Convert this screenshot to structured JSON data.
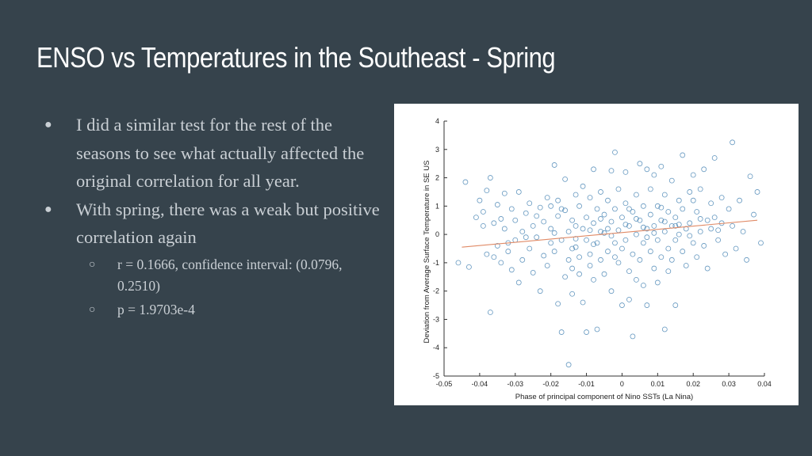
{
  "slide": {
    "title": "ENSO vs Temperatures in the Southeast - Spring",
    "bullets": [
      {
        "text": "I did a similar test for the rest of the seasons to see what actually affected the original correlation for all year.",
        "level": 1
      },
      {
        "text": "With spring, there was a weak but positive correlation again",
        "level": 1
      },
      {
        "text": "r = 0.1666, confidence interval: (0.0796, 0.2510)",
        "level": 2
      },
      {
        "text": "p = 1.9703e-4",
        "level": 2
      }
    ],
    "bullet_glyphs": {
      "level1": "●",
      "level2": "○"
    }
  },
  "colors": {
    "background": "#36434c",
    "title": "#ffffff",
    "body_text": "#c9cfd4",
    "points": "#4a86b5",
    "fit_line": "#e08a66"
  },
  "chart_data": {
    "type": "scatter",
    "xlabel": "Phase of principal component of Nino SSTs (La Nina)",
    "ylabel": "Deviation from Average Surface Temperature in SE US",
    "xlim": [
      -0.05,
      0.04
    ],
    "ylim": [
      -5,
      4
    ],
    "xticks": [
      -0.05,
      -0.04,
      -0.03,
      -0.02,
      -0.01,
      0,
      0.01,
      0.02,
      0.03,
      0.04
    ],
    "xtick_labels": [
      "-0.05",
      "-0.04",
      "-0.03",
      "-0.02",
      "-0.01",
      "0",
      "0.01",
      "0.02",
      "0.03",
      "0.04"
    ],
    "yticks": [
      -5,
      -4,
      -3,
      -2,
      -1,
      0,
      1,
      2,
      3,
      4
    ],
    "ytick_labels": [
      "-5",
      "-4",
      "-3",
      "-2",
      "-1",
      "0",
      "1",
      "2",
      "3",
      "4"
    ],
    "grid": false,
    "marker": "open-circle",
    "fit_line": {
      "x": [
        -0.045,
        0.038
      ],
      "y": [
        -0.45,
        0.5
      ]
    },
    "points": [
      [
        -0.046,
        -1.0
      ],
      [
        -0.044,
        1.85
      ],
      [
        -0.043,
        -1.15
      ],
      [
        -0.041,
        0.6
      ],
      [
        -0.04,
        1.2
      ],
      [
        -0.039,
        0.8
      ],
      [
        -0.039,
        0.3
      ],
      [
        -0.038,
        -0.7
      ],
      [
        -0.038,
        1.55
      ],
      [
        -0.037,
        -2.75
      ],
      [
        -0.037,
        2.0
      ],
      [
        -0.036,
        0.4
      ],
      [
        -0.035,
        -0.4
      ],
      [
        -0.035,
        1.05
      ],
      [
        -0.034,
        -1.0
      ],
      [
        -0.033,
        0.2
      ],
      [
        -0.033,
        1.45
      ],
      [
        -0.032,
        -0.6
      ],
      [
        -0.031,
        0.9
      ],
      [
        -0.031,
        -1.25
      ],
      [
        -0.03,
        0.5
      ],
      [
        -0.03,
        -0.2
      ],
      [
        -0.029,
        1.5
      ],
      [
        -0.029,
        -1.7
      ],
      [
        -0.028,
        0.1
      ],
      [
        -0.028,
        -0.9
      ],
      [
        -0.027,
        0.75
      ],
      [
        -0.026,
        -0.5
      ],
      [
        -0.026,
        1.1
      ],
      [
        -0.025,
        -1.35
      ],
      [
        -0.025,
        0.3
      ],
      [
        -0.024,
        -0.1
      ],
      [
        -0.023,
        0.95
      ],
      [
        -0.023,
        -2.0
      ],
      [
        -0.022,
        0.45
      ],
      [
        -0.022,
        -0.75
      ],
      [
        -0.021,
        1.3
      ],
      [
        -0.021,
        -1.1
      ],
      [
        -0.02,
        0.2
      ],
      [
        -0.02,
        -0.3
      ],
      [
        -0.019,
        2.45
      ],
      [
        -0.019,
        -0.6
      ],
      [
        -0.018,
        1.2
      ],
      [
        -0.018,
        -2.45
      ],
      [
        -0.018,
        0.65
      ],
      [
        -0.017,
        -0.2
      ],
      [
        -0.017,
        -3.45
      ],
      [
        -0.016,
        0.85
      ],
      [
        -0.016,
        -1.5
      ],
      [
        -0.016,
        1.95
      ],
      [
        -0.015,
        0.1
      ],
      [
        -0.015,
        -0.9
      ],
      [
        -0.015,
        -4.6
      ],
      [
        -0.014,
        0.5
      ],
      [
        -0.014,
        -1.2
      ],
      [
        -0.014,
        -2.1
      ],
      [
        -0.013,
        1.4
      ],
      [
        -0.013,
        0.3
      ],
      [
        -0.013,
        -0.45
      ],
      [
        -0.012,
        1.0
      ],
      [
        -0.012,
        -0.8
      ],
      [
        -0.012,
        -1.4
      ],
      [
        -0.011,
        0.2
      ],
      [
        -0.011,
        1.7
      ],
      [
        -0.011,
        -2.4
      ],
      [
        -0.01,
        0.6
      ],
      [
        -0.01,
        -0.2
      ],
      [
        -0.01,
        -3.45
      ],
      [
        -0.009,
        1.3
      ],
      [
        -0.009,
        -0.7
      ],
      [
        -0.009,
        -1.1
      ],
      [
        -0.008,
        0.4
      ],
      [
        -0.008,
        2.3
      ],
      [
        -0.008,
        -1.6
      ],
      [
        -0.007,
        0.9
      ],
      [
        -0.007,
        -0.3
      ],
      [
        -0.007,
        -3.35
      ],
      [
        -0.006,
        0.1
      ],
      [
        -0.006,
        1.5
      ],
      [
        -0.006,
        -0.9
      ],
      [
        -0.005,
        0.7
      ],
      [
        -0.005,
        -1.4
      ],
      [
        -0.004,
        0.2
      ],
      [
        -0.004,
        1.2
      ],
      [
        -0.004,
        -0.6
      ],
      [
        -0.003,
        2.25
      ],
      [
        -0.003,
        0.45
      ],
      [
        -0.003,
        -2.0
      ],
      [
        -0.002,
        0.9
      ],
      [
        -0.002,
        -0.3
      ],
      [
        -0.002,
        2.9
      ],
      [
        -0.001,
        0.15
      ],
      [
        -0.001,
        -1.0
      ],
      [
        -0.001,
        1.6
      ],
      [
        0.0,
        0.6
      ],
      [
        0.0,
        -0.5
      ],
      [
        0.0,
        -2.5
      ],
      [
        0.001,
        1.1
      ],
      [
        0.001,
        -0.2
      ],
      [
        0.001,
        2.2
      ],
      [
        0.002,
        0.3
      ],
      [
        0.002,
        -1.3
      ],
      [
        0.002,
        -2.3
      ],
      [
        0.003,
        0.8
      ],
      [
        0.003,
        -0.7
      ],
      [
        0.003,
        -3.6
      ],
      [
        0.004,
        1.4
      ],
      [
        0.004,
        0.0
      ],
      [
        0.004,
        -1.6
      ],
      [
        0.005,
        2.5
      ],
      [
        0.005,
        0.5
      ],
      [
        0.005,
        -0.9
      ],
      [
        0.006,
        1.0
      ],
      [
        0.006,
        -0.3
      ],
      [
        0.006,
        -1.8
      ],
      [
        0.007,
        0.2
      ],
      [
        0.007,
        2.3
      ],
      [
        0.007,
        -2.5
      ],
      [
        0.008,
        0.7
      ],
      [
        0.008,
        -0.6
      ],
      [
        0.008,
        1.6
      ],
      [
        0.009,
        -1.2
      ],
      [
        0.009,
        0.3
      ],
      [
        0.009,
        2.1
      ],
      [
        0.01,
        1.0
      ],
      [
        0.01,
        -0.2
      ],
      [
        0.01,
        -1.7
      ],
      [
        0.011,
        0.5
      ],
      [
        0.011,
        -0.8
      ],
      [
        0.011,
        2.4
      ],
      [
        0.012,
        0.1
      ],
      [
        0.012,
        1.4
      ],
      [
        0.012,
        -3.35
      ],
      [
        0.013,
        0.8
      ],
      [
        0.013,
        -0.5
      ],
      [
        0.013,
        -1.3
      ],
      [
        0.014,
        1.9
      ],
      [
        0.014,
        0.3
      ],
      [
        0.014,
        -0.9
      ],
      [
        0.015,
        0.6
      ],
      [
        0.015,
        -0.2
      ],
      [
        0.015,
        -2.5
      ],
      [
        0.016,
        1.2
      ],
      [
        0.016,
        0.0
      ],
      [
        0.017,
        -0.6
      ],
      [
        0.017,
        2.8
      ],
      [
        0.017,
        0.9
      ],
      [
        0.018,
        0.2
      ],
      [
        0.018,
        -1.1
      ],
      [
        0.019,
        1.5
      ],
      [
        0.019,
        0.4
      ],
      [
        0.02,
        -0.3
      ],
      [
        0.02,
        2.1
      ],
      [
        0.021,
        0.8
      ],
      [
        0.021,
        -0.8
      ],
      [
        0.022,
        0.1
      ],
      [
        0.022,
        1.6
      ],
      [
        0.023,
        -0.4
      ],
      [
        0.023,
        2.3
      ],
      [
        0.024,
        0.5
      ],
      [
        0.024,
        -1.2
      ],
      [
        0.025,
        1.1
      ],
      [
        0.025,
        0.2
      ],
      [
        0.026,
        2.7
      ],
      [
        0.026,
        0.6
      ],
      [
        0.027,
        -0.2
      ],
      [
        0.028,
        1.3
      ],
      [
        0.028,
        0.4
      ],
      [
        0.029,
        -0.7
      ],
      [
        0.03,
        0.9
      ],
      [
        0.031,
        3.25
      ],
      [
        0.031,
        0.3
      ],
      [
        0.032,
        -0.5
      ],
      [
        0.033,
        1.2
      ],
      [
        0.034,
        0.1
      ],
      [
        0.035,
        -0.9
      ],
      [
        0.036,
        2.05
      ],
      [
        0.037,
        0.7
      ],
      [
        0.038,
        1.5
      ],
      [
        0.039,
        -0.3
      ],
      [
        -0.036,
        -0.8
      ],
      [
        -0.034,
        0.55
      ],
      [
        -0.032,
        -0.3
      ],
      [
        -0.027,
        -0.1
      ],
      [
        -0.024,
        0.65
      ],
      [
        -0.019,
        0.05
      ],
      [
        -0.017,
        0.9
      ],
      [
        -0.013,
        -0.15
      ],
      [
        -0.008,
        -0.35
      ],
      [
        -0.005,
        0.05
      ],
      [
        -0.003,
        -0.05
      ],
      [
        0.001,
        0.35
      ],
      [
        0.004,
        0.55
      ],
      [
        0.006,
        0.25
      ],
      [
        0.009,
        0.05
      ],
      [
        0.012,
        0.45
      ],
      [
        0.016,
        0.35
      ],
      [
        0.019,
        -0.05
      ],
      [
        0.022,
        0.55
      ],
      [
        0.027,
        0.15
      ],
      [
        -0.02,
        1.0
      ],
      [
        -0.014,
        -0.5
      ],
      [
        -0.009,
        0.15
      ],
      [
        -0.006,
        0.55
      ],
      [
        -0.002,
        -0.8
      ],
      [
        0.002,
        0.9
      ],
      [
        0.007,
        -0.1
      ],
      [
        0.011,
        0.95
      ],
      [
        0.015,
        0.3
      ],
      [
        0.02,
        1.2
      ]
    ]
  }
}
